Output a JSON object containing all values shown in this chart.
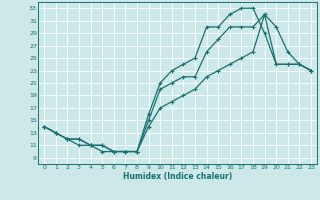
{
  "xlabel": "Humidex (Indice chaleur)",
  "bg_color": "#cce8e8",
  "grid_color": "#ffffff",
  "line_color": "#1a7070",
  "xlim": [
    -0.5,
    23.5
  ],
  "ylim": [
    8,
    34
  ],
  "xticks": [
    0,
    1,
    2,
    3,
    4,
    5,
    6,
    7,
    8,
    9,
    10,
    11,
    12,
    13,
    14,
    15,
    16,
    17,
    18,
    19,
    20,
    21,
    22,
    23
  ],
  "yticks": [
    9,
    11,
    13,
    15,
    17,
    19,
    21,
    23,
    25,
    27,
    29,
    31,
    33
  ],
  "line1_x": [
    0,
    1,
    2,
    3,
    4,
    5,
    6,
    7,
    8,
    9,
    10,
    11,
    12,
    13,
    14,
    15,
    16,
    17,
    18,
    19,
    20,
    21,
    22,
    23
  ],
  "line1_y": [
    14,
    13,
    12,
    11,
    11,
    10,
    10,
    10,
    10,
    16,
    21,
    23,
    24,
    25,
    30,
    30,
    32,
    33,
    33,
    29,
    24,
    24,
    24,
    23
  ],
  "line2_x": [
    0,
    1,
    2,
    3,
    4,
    5,
    6,
    7,
    8,
    9,
    10,
    11,
    12,
    13,
    14,
    15,
    16,
    17,
    18,
    19,
    20,
    21,
    22,
    23
  ],
  "line2_y": [
    14,
    13,
    12,
    12,
    11,
    11,
    10,
    10,
    10,
    15,
    20,
    21,
    22,
    22,
    26,
    28,
    30,
    30,
    30,
    32,
    30,
    26,
    24,
    23
  ],
  "line3_x": [
    0,
    1,
    2,
    3,
    4,
    5,
    6,
    7,
    8,
    9,
    10,
    11,
    12,
    13,
    14,
    15,
    16,
    17,
    18,
    19,
    20,
    21,
    22,
    23
  ],
  "line3_y": [
    14,
    13,
    12,
    12,
    11,
    11,
    10,
    10,
    10,
    14,
    17,
    18,
    19,
    20,
    22,
    23,
    24,
    25,
    26,
    32,
    24,
    24,
    24,
    23
  ]
}
